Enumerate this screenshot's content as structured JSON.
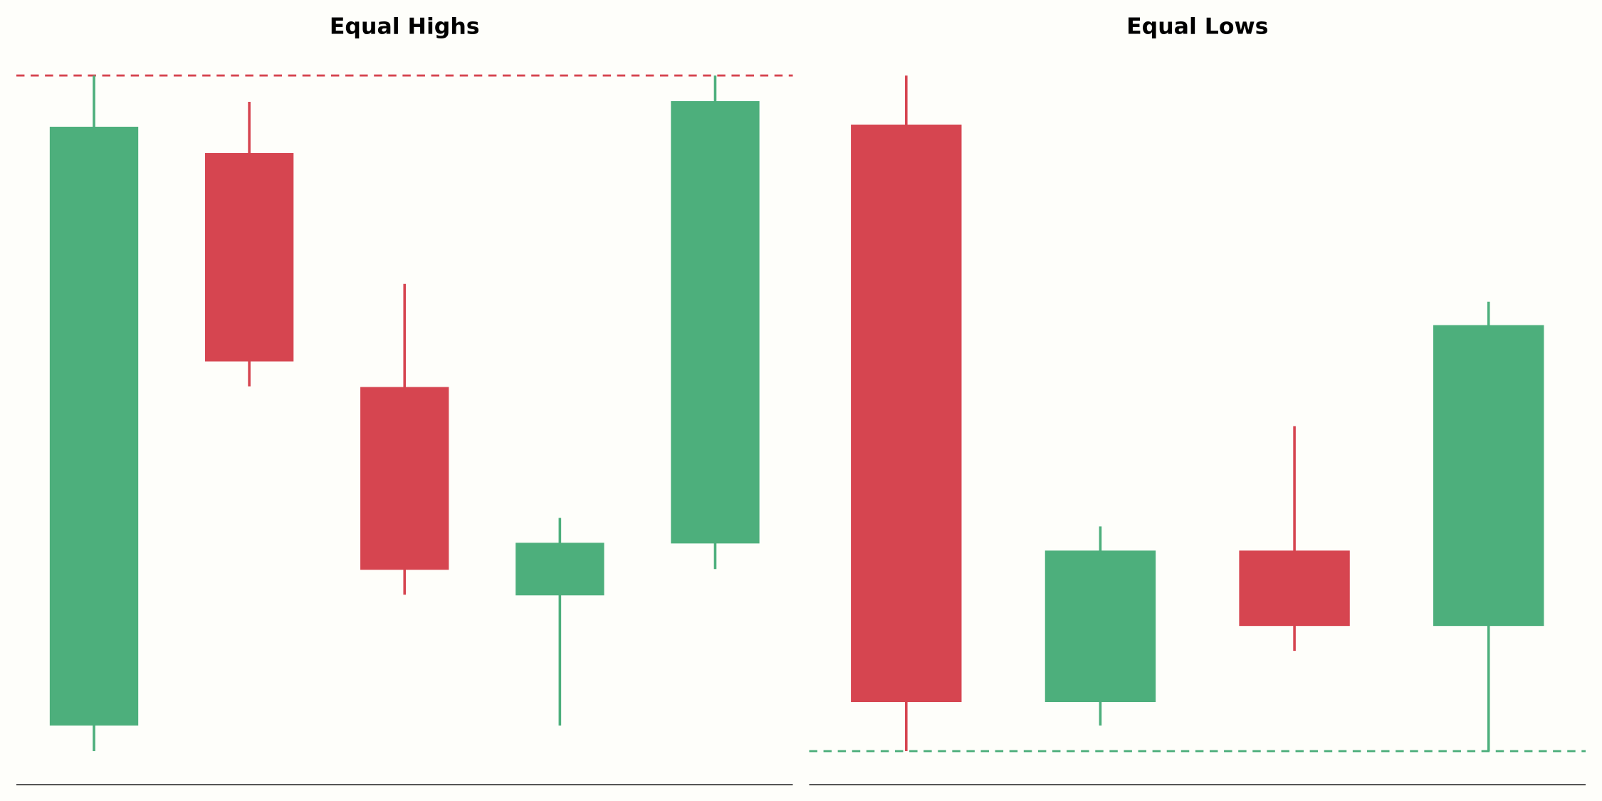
{
  "chart_data": [
    {
      "type": "candlestick",
      "title": "Equal Highs",
      "open": [
        8.6,
        89.1,
        56.2,
        26.9,
        34.2
      ],
      "high": [
        100,
        96.3,
        70.7,
        37.8,
        100
      ],
      "low": [
        5.0,
        56.3,
        27.0,
        8.6,
        30.6
      ],
      "close": [
        92.8,
        59.8,
        30.5,
        34.3,
        96.4
      ],
      "up_color": "#4daf7c",
      "down_color": "#d64550",
      "level": 100,
      "level_color": "#d64550",
      "ylim": [
        0,
        102
      ]
    },
    {
      "type": "candlestick",
      "title": "Equal Lows",
      "open": [
        93.1,
        11.9,
        33.2,
        22.6
      ],
      "high": [
        100,
        36.6,
        50.7,
        68.2
      ],
      "low": [
        5.0,
        8.6,
        19.1,
        5.0
      ],
      "close": [
        11.9,
        33.2,
        22.6,
        64.9
      ],
      "up_color": "#4daf7c",
      "down_color": "#d64550",
      "level": 5.0,
      "level_color": "#4daf7c",
      "ylim": [
        0,
        102
      ]
    }
  ]
}
